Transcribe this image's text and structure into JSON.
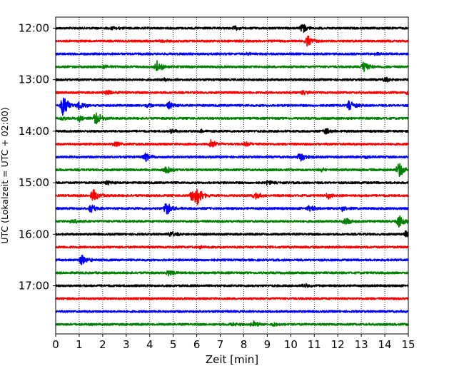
{
  "chart_data": {
    "type": "line",
    "subtype": "helicorder",
    "title": "",
    "xlabel": "Zeit  [min]",
    "ylabel": "UTC (Lokalzeit = UTC + 02:00)",
    "xlim": [
      0,
      15
    ],
    "x_ticks": [
      "0",
      "1",
      "2",
      "3",
      "4",
      "5",
      "6",
      "7",
      "8",
      "9",
      "10",
      "11",
      "12",
      "13",
      "14",
      "15"
    ],
    "grid": {
      "x": true,
      "style": "dotted"
    },
    "y_ticks": [
      "12:00",
      "13:00",
      "14:00",
      "15:00",
      "16:00",
      "17:00"
    ],
    "trace_interval_min": 15,
    "trace_color_cycle": [
      "#000000",
      "#ff0000",
      "#0000ff",
      "#008000"
    ],
    "traces": [
      {
        "start": "12:00",
        "events": [
          {
            "t": 10.5,
            "amp": 0.7
          },
          {
            "t": 2.4,
            "amp": 0.25
          },
          {
            "t": 7.6,
            "amp": 0.3
          }
        ]
      },
      {
        "start": "12:15",
        "events": [
          {
            "t": 10.7,
            "amp": 0.9
          },
          {
            "t": 4.5,
            "amp": 0.2
          }
        ]
      },
      {
        "start": "12:30",
        "events": [
          {
            "t": 8.2,
            "amp": 0.2
          },
          {
            "t": 13.6,
            "amp": 0.25
          }
        ]
      },
      {
        "start": "12:45",
        "events": [
          {
            "t": 4.3,
            "amp": 0.9
          },
          {
            "t": 13.1,
            "amp": 0.9
          },
          {
            "t": 2.1,
            "amp": 0.3
          }
        ]
      },
      {
        "start": "13:00",
        "events": [
          {
            "t": 4.6,
            "amp": 0.3
          },
          {
            "t": 14.0,
            "amp": 0.4
          }
        ]
      },
      {
        "start": "13:15",
        "events": [
          {
            "t": 2.2,
            "amp": 0.4
          },
          {
            "t": 10.5,
            "amp": 0.4
          },
          {
            "t": 15.0,
            "amp": 0.6
          }
        ]
      },
      {
        "start": "13:30",
        "events": [
          {
            "t": 0.3,
            "amp": 1.8
          },
          {
            "t": 1.0,
            "amp": 0.6
          },
          {
            "t": 4.8,
            "amp": 0.6
          },
          {
            "t": 12.5,
            "amp": 0.8
          },
          {
            "t": 3.9,
            "amp": 0.4
          }
        ]
      },
      {
        "start": "13:45",
        "events": [
          {
            "t": 1.7,
            "amp": 1.1
          },
          {
            "t": 1.0,
            "amp": 0.5
          },
          {
            "t": 0.3,
            "amp": 0.3
          }
        ]
      },
      {
        "start": "14:00",
        "events": [
          {
            "t": 11.5,
            "amp": 0.5
          },
          {
            "t": 4.9,
            "amp": 0.3
          },
          {
            "t": 6.2,
            "amp": 0.2
          }
        ]
      },
      {
        "start": "14:15",
        "events": [
          {
            "t": 6.6,
            "amp": 0.7
          },
          {
            "t": 2.5,
            "amp": 0.4
          },
          {
            "t": 8.1,
            "amp": 0.3
          }
        ]
      },
      {
        "start": "14:30",
        "events": [
          {
            "t": 3.8,
            "amp": 0.7
          },
          {
            "t": 10.4,
            "amp": 0.9
          },
          {
            "t": 13.2,
            "amp": 0.3
          }
        ]
      },
      {
        "start": "14:45",
        "events": [
          {
            "t": 4.7,
            "amp": 0.8
          },
          {
            "t": 14.6,
            "amp": 1.3
          },
          {
            "t": 11.3,
            "amp": 0.3
          }
        ]
      },
      {
        "start": "15:00",
        "events": [
          {
            "t": 2.2,
            "amp": 0.3
          },
          {
            "t": 9.0,
            "amp": 0.3
          }
        ]
      },
      {
        "start": "15:15",
        "events": [
          {
            "t": 1.6,
            "amp": 0.9
          },
          {
            "t": 5.8,
            "amp": 0.9
          },
          {
            "t": 6.0,
            "amp": 1.5
          },
          {
            "t": 8.5,
            "amp": 0.6
          },
          {
            "t": 11.6,
            "amp": 0.5
          }
        ]
      },
      {
        "start": "15:30",
        "events": [
          {
            "t": 1.5,
            "amp": 0.7
          },
          {
            "t": 4.7,
            "amp": 1.0
          },
          {
            "t": 10.8,
            "amp": 0.6
          },
          {
            "t": 12.2,
            "amp": 0.4
          }
        ]
      },
      {
        "start": "15:45",
        "events": [
          {
            "t": 12.3,
            "amp": 0.6
          },
          {
            "t": 14.6,
            "amp": 1.0
          },
          {
            "t": 0.7,
            "amp": 0.4
          }
        ]
      },
      {
        "start": "16:00",
        "events": [
          {
            "t": 4.9,
            "amp": 0.5
          },
          {
            "t": 14.9,
            "amp": 0.5
          }
        ]
      },
      {
        "start": "16:15",
        "events": [
          {
            "t": 6.1,
            "amp": 0.2
          }
        ]
      },
      {
        "start": "16:30",
        "events": [
          {
            "t": 1.1,
            "amp": 0.9
          }
        ]
      },
      {
        "start": "16:45",
        "events": [
          {
            "t": 4.8,
            "amp": 0.5
          }
        ]
      },
      {
        "start": "17:00",
        "events": [
          {
            "t": 10.6,
            "amp": 0.3
          }
        ]
      },
      {
        "start": "17:15",
        "events": []
      },
      {
        "start": "17:30",
        "events": []
      },
      {
        "start": "17:45",
        "events": [
          {
            "t": 8.4,
            "amp": 0.5
          },
          {
            "t": 7.5,
            "amp": 0.3
          },
          {
            "t": 9.3,
            "amp": 0.3
          }
        ]
      }
    ]
  }
}
